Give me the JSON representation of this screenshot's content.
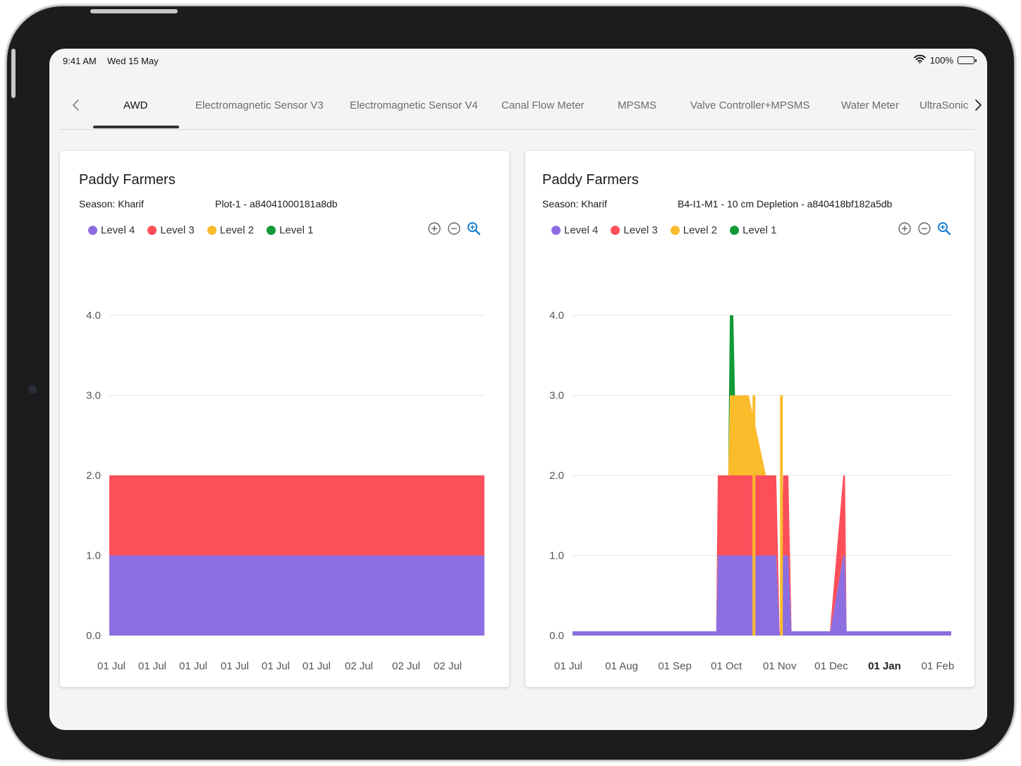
{
  "status_bar": {
    "time": "9:41 AM",
    "date": "Wed 15 May",
    "battery": "100%"
  },
  "tabs": [
    {
      "label": "AWD",
      "active": true
    },
    {
      "label": "Electromagnetic Sensor V3",
      "active": false
    },
    {
      "label": "Electromagnetic Sensor V4",
      "active": false
    },
    {
      "label": "Canal Flow Meter",
      "active": false
    },
    {
      "label": "MPSMS",
      "active": false
    },
    {
      "label": "Valve Controller+MPSMS",
      "active": false
    },
    {
      "label": "Water Meter",
      "active": false
    },
    {
      "label": "UltraSonic",
      "active": false
    }
  ],
  "colors": {
    "level4": "#8c6ee0",
    "level3": "#fc4f5a",
    "level2": "#fbbc2c",
    "level1": "#129a38",
    "zoom_active": "#1a7fd4"
  },
  "cards": [
    {
      "title": "Paddy Farmers",
      "season": "Season: Kharif",
      "device": "Plot-1 - a84041000181a8db"
    },
    {
      "title": "Paddy Farmers",
      "season": "Season: Kharif",
      "device": "B4-I1-M1 - 10 cm Depletion - a840418bf182a5db"
    }
  ],
  "legend": [
    "Level 4",
    "Level 3",
    "Level 2",
    "Level 1"
  ],
  "chart_data": [
    {
      "type": "area",
      "stacked": true,
      "ylim": [
        0,
        4
      ],
      "yticks": [
        "4.0",
        "3.0",
        "2.0",
        "1.0",
        "0.0"
      ],
      "x_ticks": [
        "01 Jul",
        "01 Jul",
        "01 Jul",
        "01 Jul",
        "01 Jul",
        "01 Jul",
        "02 Jul",
        "02 Jul",
        "02 Jul"
      ],
      "series": [
        {
          "name": "Level 4",
          "values": [
            1,
            1,
            1,
            1,
            1,
            1,
            1,
            1,
            1
          ]
        },
        {
          "name": "Level 3",
          "values": [
            1,
            1,
            1,
            1,
            1,
            1,
            1,
            1,
            1
          ]
        },
        {
          "name": "Level 2",
          "values": [
            0,
            0,
            0,
            0,
            0,
            0,
            0,
            0,
            0
          ]
        },
        {
          "name": "Level 1",
          "values": [
            0,
            0,
            0,
            0,
            0,
            0,
            0,
            0,
            0
          ]
        }
      ],
      "legend_position": "top-left",
      "grid": true
    },
    {
      "type": "area",
      "stacked": true,
      "ylim": [
        0,
        4
      ],
      "yticks": [
        "4.0",
        "3.0",
        "2.0",
        "1.0",
        "0.0"
      ],
      "x_ticks": [
        "01 Jul",
        "01 Aug",
        "01 Sep",
        "01 Oct",
        "01 Nov",
        "01 Dec",
        "01 Jan",
        "01 Feb"
      ],
      "bold_tick": "01 Jan",
      "x": [
        "01 Jul",
        "25 Sep",
        "26 Sep",
        "01 Oct",
        "02 Oct",
        "03 Oct",
        "05 Oct",
        "06 Oct",
        "14 Oct",
        "24 Oct",
        "25 Oct",
        "30 Oct",
        "01 Nov",
        "03 Nov",
        "06 Nov",
        "08 Nov",
        "13 Nov",
        "30 Nov",
        "08 Dec",
        "09 Dec",
        "10 Dec",
        "01 Feb"
      ],
      "series": [
        {
          "name": "Level 4",
          "values": [
            0,
            0,
            1,
            1,
            1,
            1,
            1,
            1,
            1,
            1,
            1,
            1,
            0,
            1,
            1,
            0,
            0,
            0,
            1,
            1,
            0,
            0
          ]
        },
        {
          "name": "Level 3",
          "values": [
            0,
            0,
            1,
            1,
            1,
            1,
            1,
            1,
            1,
            1,
            1,
            1,
            0,
            1,
            1,
            0,
            0,
            0,
            1,
            1,
            0,
            0
          ]
        },
        {
          "name": "Level 2",
          "values": [
            0,
            0,
            0,
            0,
            0,
            1,
            1,
            1,
            1,
            0,
            0,
            0,
            0,
            0,
            0,
            0,
            0,
            0,
            0,
            0,
            0,
            0
          ]
        },
        {
          "name": "Level 1",
          "values": [
            0,
            0,
            0,
            0,
            0,
            1,
            1,
            0,
            0,
            0,
            0,
            0,
            0,
            0,
            0,
            0,
            0,
            0,
            0,
            0,
            0,
            0
          ]
        }
      ],
      "spikes": [
        {
          "x": "17 Oct",
          "value": 3,
          "series": "Level 2"
        },
        {
          "x": "02 Nov",
          "value": 3,
          "series": "Level 2"
        }
      ],
      "legend_position": "top-left",
      "grid": true
    }
  ]
}
